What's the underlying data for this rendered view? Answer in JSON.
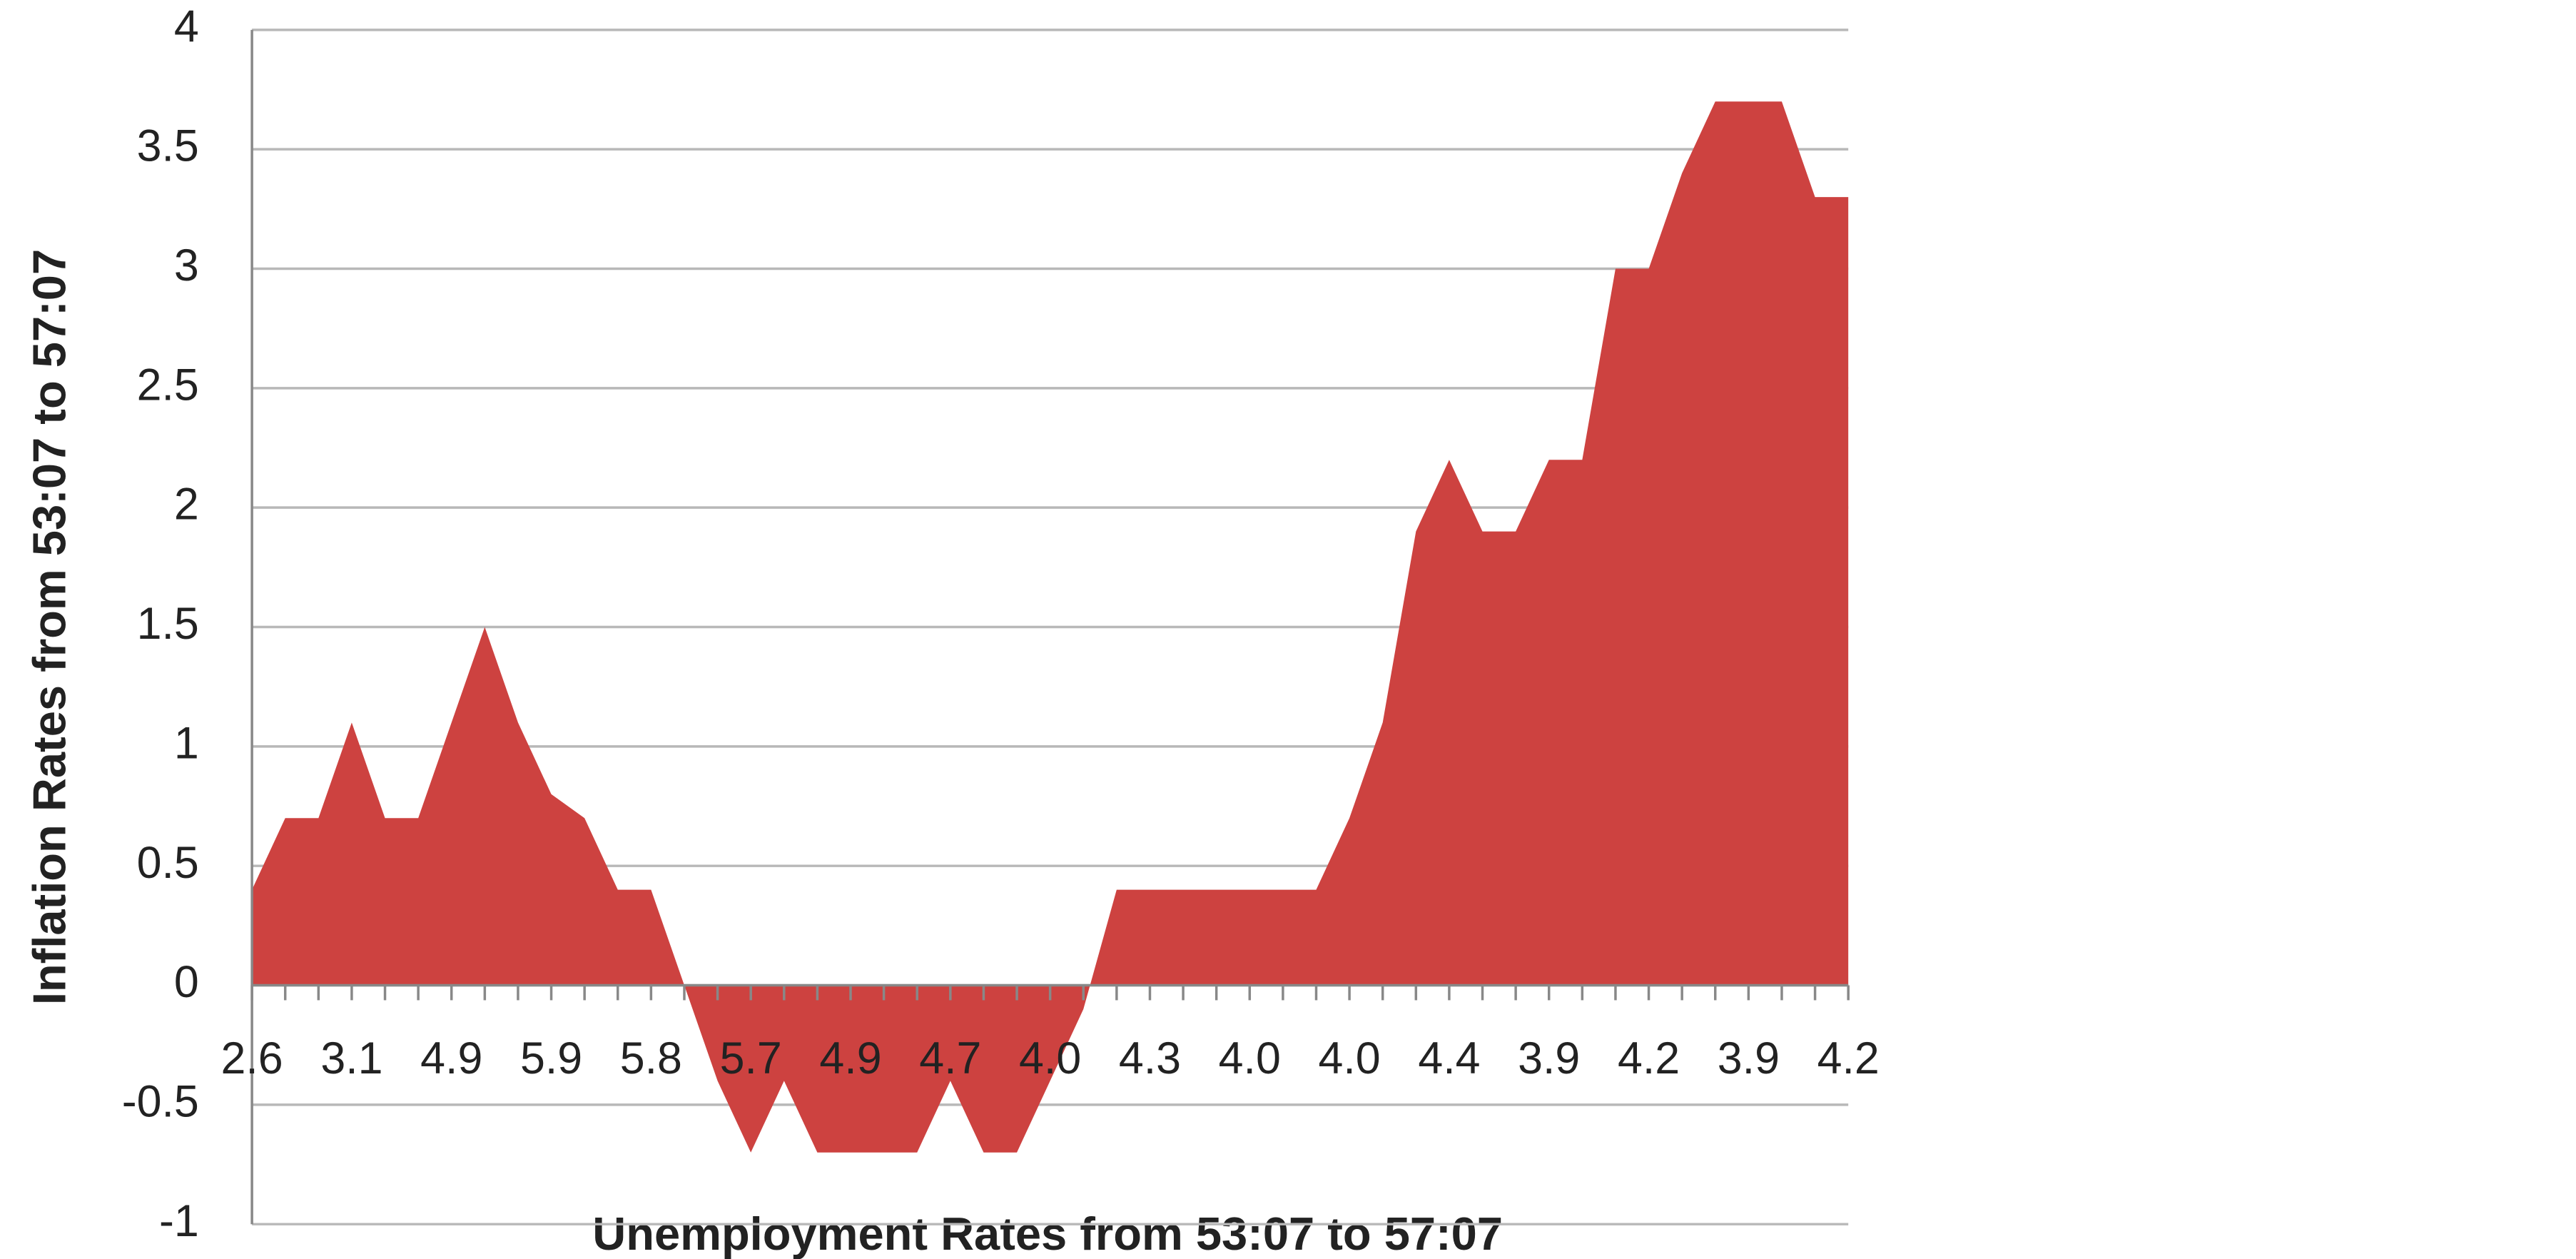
{
  "chart_data": {
    "type": "area",
    "x_label": "Unemployment Rates from 53:07 to 57:07",
    "y_label": "Inflation Rates from 53:07 to 57:07",
    "categories": [
      "2.6",
      null,
      null,
      "3.1",
      null,
      null,
      "4.9",
      null,
      null,
      "5.9",
      null,
      null,
      "5.8",
      null,
      null,
      "5.7",
      null,
      null,
      "4.9",
      null,
      null,
      "4.7",
      null,
      null,
      "4.0",
      null,
      null,
      "4.3",
      null,
      null,
      "4.0",
      null,
      null,
      "4.0",
      null,
      null,
      "4.4",
      null,
      null,
      "3.9",
      null,
      null,
      "4.2",
      null,
      null,
      "3.9",
      null,
      null,
      "4.2"
    ],
    "values": [
      0.4,
      0.7,
      0.7,
      1.1,
      0.7,
      0.7,
      1.1,
      1.5,
      1.1,
      0.8,
      0.7,
      0.4,
      0.4,
      0,
      -0.4,
      -0.7,
      -0.4,
      -0.7,
      -0.7,
      -0.7,
      -0.7,
      -0.4,
      -0.7,
      -0.7,
      -0.4,
      -0.1,
      0.4,
      0.4,
      0.4,
      0.4,
      0.4,
      0.4,
      0.4,
      0.7,
      1.1,
      1.9,
      2.2,
      1.9,
      1.9,
      2.2,
      2.2,
      3.0,
      3.0,
      3.4,
      3.7,
      3.7,
      3.7,
      3.3,
      3.3
    ],
    "color": "#cd4240",
    "ylim": [
      -1,
      4
    ],
    "yticks": [
      -1,
      -0.5,
      0,
      0.5,
      1,
      1.5,
      2,
      2.5,
      3,
      3.5,
      4
    ],
    "grid": true
  }
}
